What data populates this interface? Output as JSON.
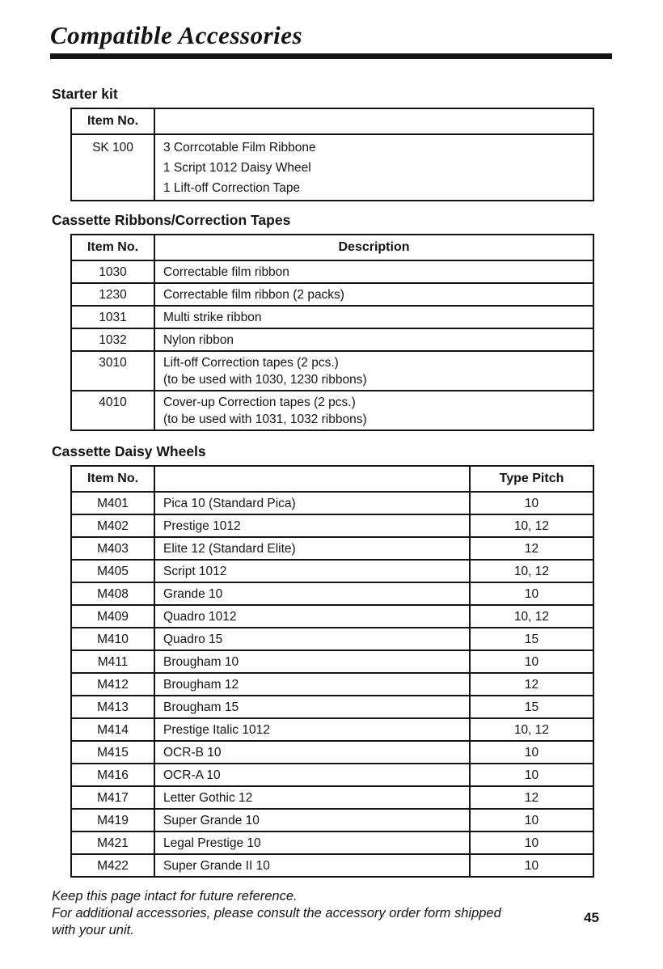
{
  "title": "Compatible Accessories",
  "colors": {
    "ink": "#141414",
    "paper": "#ffffff"
  },
  "sections": [
    {
      "heading": "Starter kit",
      "header": {
        "item": "Item No.",
        "desc": ""
      },
      "rows": [
        {
          "item": "SK 100",
          "desc": "3 Corrcotable Film Ribbone\n1 Script 1012 Daisy Wheel\n1 Lift-off Correction Tape"
        }
      ]
    },
    {
      "heading": "Cassette Ribbons/Correction Tapes",
      "header": {
        "item": "Item No.",
        "desc": "Description"
      },
      "rows": [
        {
          "item": "1030",
          "desc": "Correctable film ribbon"
        },
        {
          "item": "1230",
          "desc": "Correctable film ribbon (2 packs)"
        },
        {
          "item": "1031",
          "desc": "Multi strike ribbon"
        },
        {
          "item": "1032",
          "desc": "Nylon ribbon"
        },
        {
          "item": "3010",
          "desc": "Lift-off Correction tapes (2 pcs.)\n(to be used with 1030, 1230 ribbons)"
        },
        {
          "item": "4010",
          "desc": "Cover-up Correction tapes (2 pcs.)\n(to be used with 1031, 1032 ribbons)"
        }
      ]
    },
    {
      "heading": "Cassette Daisy Wheels",
      "header": {
        "item": "Item No.",
        "desc": "",
        "pitch": "Type Pitch"
      },
      "rows": [
        {
          "item": "M401",
          "desc": "Pica 10 (Standard Pica)",
          "pitch": "10"
        },
        {
          "item": "M402",
          "desc": "Prestige 1012",
          "pitch": "10, 12"
        },
        {
          "item": "M403",
          "desc": "Elite 12 (Standard Elite)",
          "pitch": "12"
        },
        {
          "item": "M405",
          "desc": "Script 1012",
          "pitch": "10, 12"
        },
        {
          "item": "M408",
          "desc": "Grande 10",
          "pitch": "10"
        },
        {
          "item": "M409",
          "desc": "Quadro 1012",
          "pitch": "10, 12"
        },
        {
          "item": "M410",
          "desc": "Quadro 15",
          "pitch": "15"
        },
        {
          "item": "M411",
          "desc": "Brougham 10",
          "pitch": "10"
        },
        {
          "item": "M412",
          "desc": "Brougham 12",
          "pitch": "12"
        },
        {
          "item": "M413",
          "desc": "Brougham 15",
          "pitch": "15"
        },
        {
          "item": "M414",
          "desc": "Prestige Italic 1012",
          "pitch": "10, 12"
        },
        {
          "item": "M415",
          "desc": "OCR-B 10",
          "pitch": "10"
        },
        {
          "item": "M416",
          "desc": "OCR-A 10",
          "pitch": "10"
        },
        {
          "item": "M417",
          "desc": "Letter Gothic 12",
          "pitch": "12"
        },
        {
          "item": "M419",
          "desc": "Super Grande 10",
          "pitch": "10"
        },
        {
          "item": "M421",
          "desc": "Legal Prestige 10",
          "pitch": "10"
        },
        {
          "item": "M422",
          "desc": "Super Grande II 10",
          "pitch": "10"
        }
      ]
    }
  ],
  "footer": {
    "lines": [
      "Keep this page intact for future reference.",
      "For additional accessories, please consult the accessory order form shipped",
      "with your unit."
    ],
    "page_number": "45"
  }
}
